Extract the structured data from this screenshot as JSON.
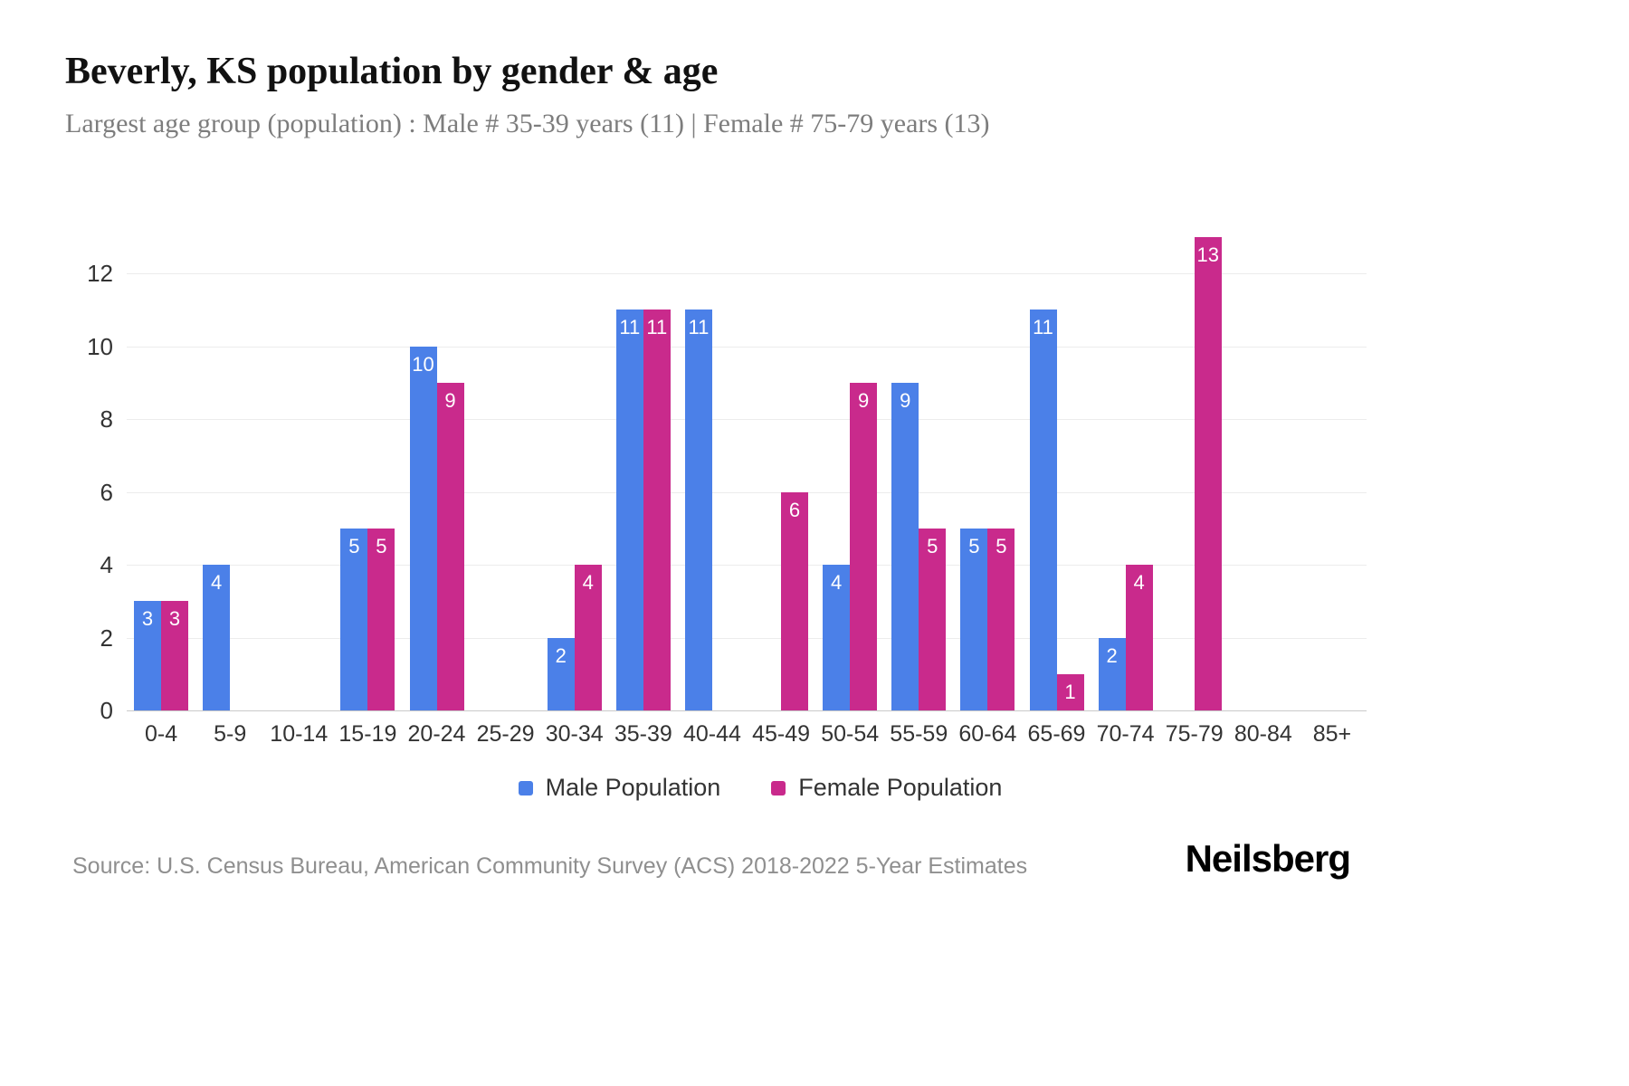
{
  "chart_data": {
    "type": "bar",
    "title": "Beverly, KS population by gender & age",
    "subtitle": "Largest age group (population) : Male # 35-39 years (11) | Female # 75-79 years (13)",
    "categories": [
      "0-4",
      "5-9",
      "10-14",
      "15-19",
      "20-24",
      "25-29",
      "30-34",
      "35-39",
      "40-44",
      "45-49",
      "50-54",
      "55-59",
      "60-64",
      "65-69",
      "70-74",
      "75-79",
      "80-84",
      "85+"
    ],
    "series": [
      {
        "name": "Male Population",
        "color": "#4b80e8",
        "values": [
          3,
          4,
          0,
          5,
          10,
          0,
          2,
          11,
          11,
          0,
          4,
          9,
          5,
          11,
          2,
          0,
          0,
          0
        ]
      },
      {
        "name": "Female Population",
        "color": "#c92a8c",
        "values": [
          3,
          0,
          0,
          5,
          9,
          0,
          4,
          11,
          0,
          6,
          9,
          5,
          5,
          1,
          4,
          13,
          0,
          0
        ]
      }
    ],
    "ylim": [
      0,
      13
    ],
    "yticks": [
      0,
      2,
      4,
      6,
      8,
      10,
      12
    ],
    "grid": true,
    "legend_position": "bottom",
    "bar_label_color": "#ffffff"
  },
  "footer": {
    "source": "Source: U.S. Census Bureau, American Community Survey (ACS) 2018-2022 5-Year Estimates",
    "brand": "Neilsberg"
  }
}
